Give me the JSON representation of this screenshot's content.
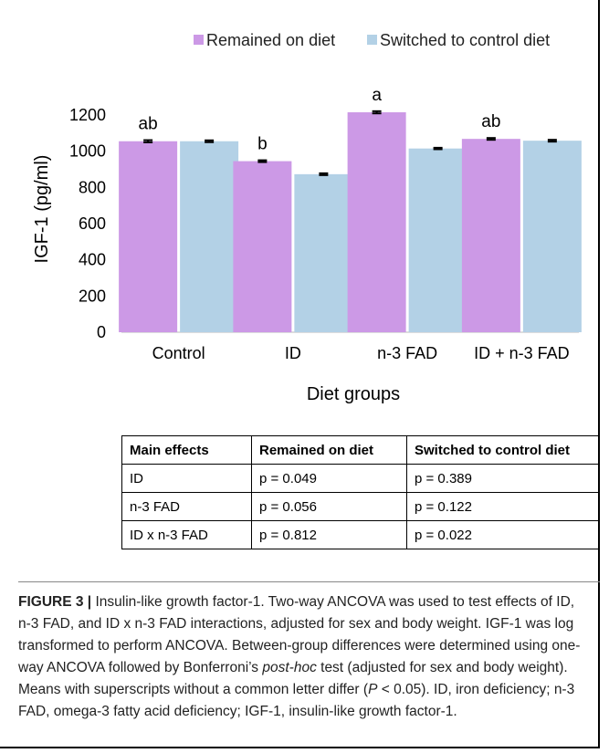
{
  "colors": {
    "remained": "#cc99e6",
    "switched": "#b3d1e6",
    "errorbar": "#000000"
  },
  "legend": {
    "items": [
      {
        "label": "Remained on diet",
        "color": "#cc99e6"
      },
      {
        "label": "Switched to control diet",
        "color": "#b3d1e6"
      }
    ]
  },
  "chart_data": {
    "type": "bar",
    "categories": [
      "Control",
      "ID",
      "n-3 FAD",
      "ID + n-3 FAD"
    ],
    "series": [
      {
        "name": "Remained on diet",
        "values": [
          1055,
          945,
          1215,
          1068
        ],
        "error": [
          6,
          5,
          6,
          5
        ]
      },
      {
        "name": "Switched to control diet",
        "values": [
          1055,
          873,
          1015,
          1058
        ],
        "error": [
          5,
          5,
          4,
          5
        ]
      }
    ],
    "superscripts": [
      "ab",
      "b",
      "a",
      "ab"
    ],
    "xlabel": "Diet groups",
    "ylabel": "IGF-1 (pg/ml)",
    "ylim": [
      0,
      1200
    ],
    "yticks": [
      0,
      200,
      400,
      600,
      800,
      1000,
      1200
    ],
    "grid": false,
    "legend_position": "top"
  },
  "table": {
    "headers": [
      "Main effects",
      "Remained on diet",
      "Switched to control diet"
    ],
    "rows": [
      [
        "ID",
        "p = 0.049",
        "p = 0.389"
      ],
      [
        "n-3 FAD",
        "p = 0.056",
        "p = 0.122"
      ],
      [
        "ID x n-3 FAD",
        "p = 0.812",
        "p = 0.022"
      ]
    ]
  },
  "caption": {
    "label": "FIGURE 3 |",
    "text_1": " Insulin-like growth factor-1. Two-way ANCOVA was used to test effects of ID, n-3 FAD, and ID x n-3 FAD interactions, adjusted for sex and body weight. IGF-1 was log transformed to perform ANCOVA. Between-group differences were determined using one-way ANCOVA followed by Bonferroni’s ",
    "emph_1": "post-hoc",
    "text_2": " test (adjusted for sex and body weight). Means with superscripts without a common letter differ (",
    "emph_2": "P",
    "text_3": " < 0.05). ID, iron deficiency; n-3 FAD, omega-3 fatty acid deficiency; IGF-1, insulin-like growth factor-1."
  }
}
